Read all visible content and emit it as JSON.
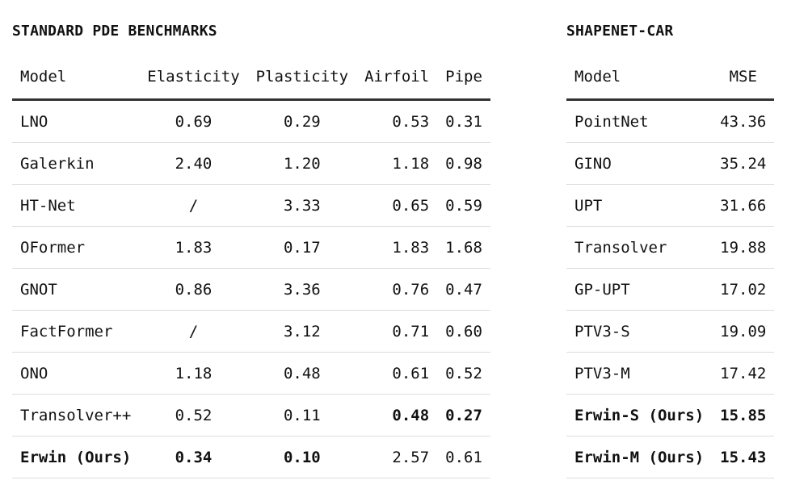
{
  "pde": {
    "title": "STANDARD PDE BENCHMARKS",
    "headers": [
      "Model",
      "Elasticity",
      "Plasticity",
      "Airfoil",
      "Pipe"
    ],
    "rows": [
      {
        "model": "LNO",
        "elasticity": "0.69",
        "plasticity": "0.29",
        "airfoil": "0.53",
        "pipe": "0.31"
      },
      {
        "model": "Galerkin",
        "elasticity": "2.40",
        "plasticity": "1.20",
        "airfoil": "1.18",
        "pipe": "0.98"
      },
      {
        "model": "HT-Net",
        "elasticity": "/",
        "plasticity": "3.33",
        "airfoil": "0.65",
        "pipe": "0.59"
      },
      {
        "model": "OFormer",
        "elasticity": "1.83",
        "plasticity": "0.17",
        "airfoil": "1.83",
        "pipe": "1.68"
      },
      {
        "model": "GNOT",
        "elasticity": "0.86",
        "plasticity": "3.36",
        "airfoil": "0.76",
        "pipe": "0.47"
      },
      {
        "model": "FactFormer",
        "elasticity": "/",
        "plasticity": "3.12",
        "airfoil": "0.71",
        "pipe": "0.60"
      },
      {
        "model": "ONO",
        "elasticity": "1.18",
        "plasticity": "0.48",
        "airfoil": "0.61",
        "pipe": "0.52"
      },
      {
        "model": "Transolver++",
        "elasticity": "0.52",
        "plasticity": "0.11",
        "airfoil": "0.48",
        "pipe": "0.27"
      },
      {
        "model": "Erwin (Ours)",
        "elasticity": "0.34",
        "plasticity": "0.10",
        "airfoil": "2.57",
        "pipe": "0.61"
      }
    ]
  },
  "shapenet": {
    "title": "SHAPENET-CAR",
    "headers": [
      "Model",
      "MSE"
    ],
    "rows": [
      {
        "model": "PointNet",
        "mse": "43.36"
      },
      {
        "model": "GINO",
        "mse": "35.24"
      },
      {
        "model": "UPT",
        "mse": "31.66"
      },
      {
        "model": "Transolver",
        "mse": "19.88"
      },
      {
        "model": "GP-UPT",
        "mse": "17.02"
      },
      {
        "model": "PTV3-S",
        "mse": "19.09"
      },
      {
        "model": "PTV3-M",
        "mse": "17.42"
      },
      {
        "model": "Erwin-S (Ours)",
        "mse": "15.85"
      },
      {
        "model": "Erwin-M (Ours)",
        "mse": "15.43"
      }
    ]
  }
}
